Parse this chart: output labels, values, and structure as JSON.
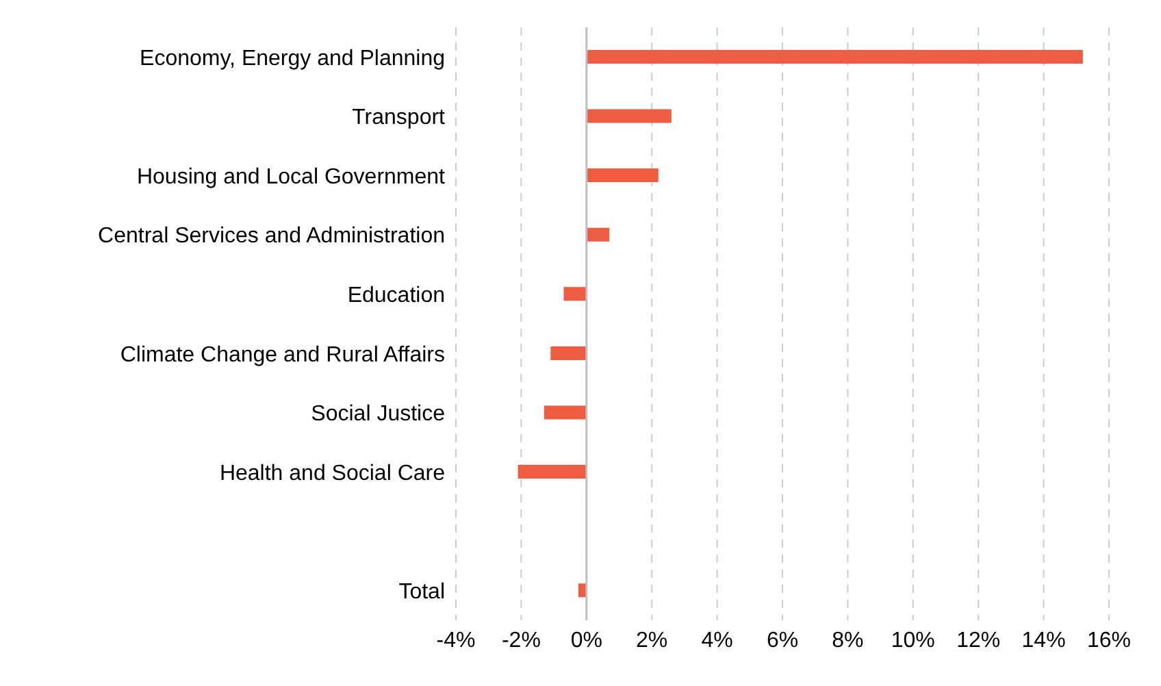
{
  "chart_data": {
    "type": "bar",
    "orientation": "horizontal",
    "categories": [
      "Economy, Energy and Planning",
      "Transport",
      "Housing and Local Government",
      "Central Services and Administration",
      "Education",
      "Climate Change and Rural Affairs",
      "Social Justice",
      "Health and Social Care",
      null,
      "Total"
    ],
    "values": [
      15.2,
      2.6,
      2.2,
      0.7,
      -0.7,
      -1.1,
      -1.3,
      -2.1,
      null,
      -0.25
    ],
    "color": "#ee5c42",
    "xlim": [
      -4,
      16
    ],
    "xticks": [
      {
        "value": -4,
        "label": "-4%"
      },
      {
        "value": -2,
        "label": "-2%"
      },
      {
        "value": 0,
        "label": "0%"
      },
      {
        "value": 2,
        "label": "2%"
      },
      {
        "value": 4,
        "label": "4%"
      },
      {
        "value": 6,
        "label": "6%"
      },
      {
        "value": 8,
        "label": "8%"
      },
      {
        "value": 10,
        "label": "10%"
      },
      {
        "value": 12,
        "label": "12%"
      },
      {
        "value": 14,
        "label": "14%"
      },
      {
        "value": 16,
        "label": "16%"
      }
    ],
    "grid": "x",
    "legend": false
  }
}
